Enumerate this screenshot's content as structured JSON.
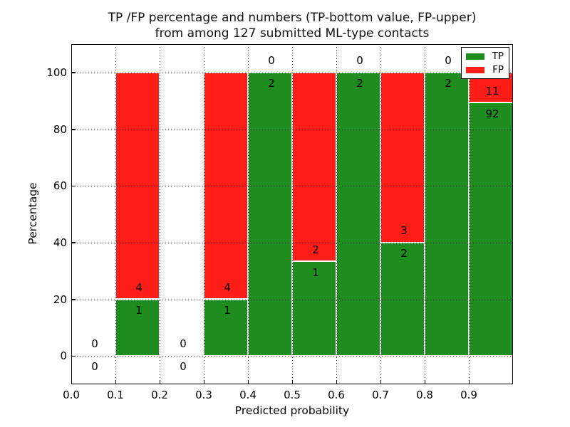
{
  "chart_data": {
    "type": "bar",
    "stacked": true,
    "title_line1": "TP /FP percentage and numbers (TP-bottom value, FP-upper)",
    "title_line2": "from among 127 submitted ML-type contacts",
    "xlabel": "Predicted probability",
    "ylabel": "Percentage",
    "xlim": [
      0.0,
      1.0
    ],
    "ylim": [
      -10,
      110
    ],
    "x_tick_values": [
      0.0,
      0.1,
      0.2,
      0.3,
      0.4,
      0.5,
      0.6,
      0.7,
      0.8,
      0.9
    ],
    "x_tick_labels": [
      "0.0",
      "0.1",
      "0.2",
      "0.3",
      "0.4",
      "0.5",
      "0.6",
      "0.7",
      "0.8",
      "0.9"
    ],
    "y_tick_values": [
      0,
      20,
      40,
      60,
      80,
      100
    ],
    "y_tick_labels": [
      "0",
      "20",
      "40",
      "60",
      "80",
      "100"
    ],
    "grid": true,
    "legend_position": "upper-right",
    "legend": [
      {
        "label": "TP",
        "color": "#1e8c1e"
      },
      {
        "label": "FP",
        "color": "#ff1d17"
      }
    ],
    "total_contacts": 127,
    "bins": [
      {
        "range": [
          0.0,
          0.1
        ],
        "tp": 0,
        "fp": 0
      },
      {
        "range": [
          0.1,
          0.2
        ],
        "tp": 1,
        "fp": 4
      },
      {
        "range": [
          0.2,
          0.3
        ],
        "tp": 0,
        "fp": 0
      },
      {
        "range": [
          0.3,
          0.4
        ],
        "tp": 1,
        "fp": 4
      },
      {
        "range": [
          0.4,
          0.5
        ],
        "tp": 2,
        "fp": 0
      },
      {
        "range": [
          0.5,
          0.6
        ],
        "tp": 1,
        "fp": 2
      },
      {
        "range": [
          0.6,
          0.7
        ],
        "tp": 2,
        "fp": 0
      },
      {
        "range": [
          0.7,
          0.8
        ],
        "tp": 2,
        "fp": 3
      },
      {
        "range": [
          0.8,
          0.9
        ],
        "tp": 2,
        "fp": 0
      },
      {
        "range": [
          0.9,
          1.0
        ],
        "tp": 92,
        "fp": 11
      }
    ],
    "colors": {
      "tp": "#1e8c1e",
      "fp": "#ff1d17",
      "bar_edge": "#ffffff",
      "grid": "#000000",
      "spine": "#000000",
      "background": "#ffffff",
      "text": "#000000"
    }
  }
}
